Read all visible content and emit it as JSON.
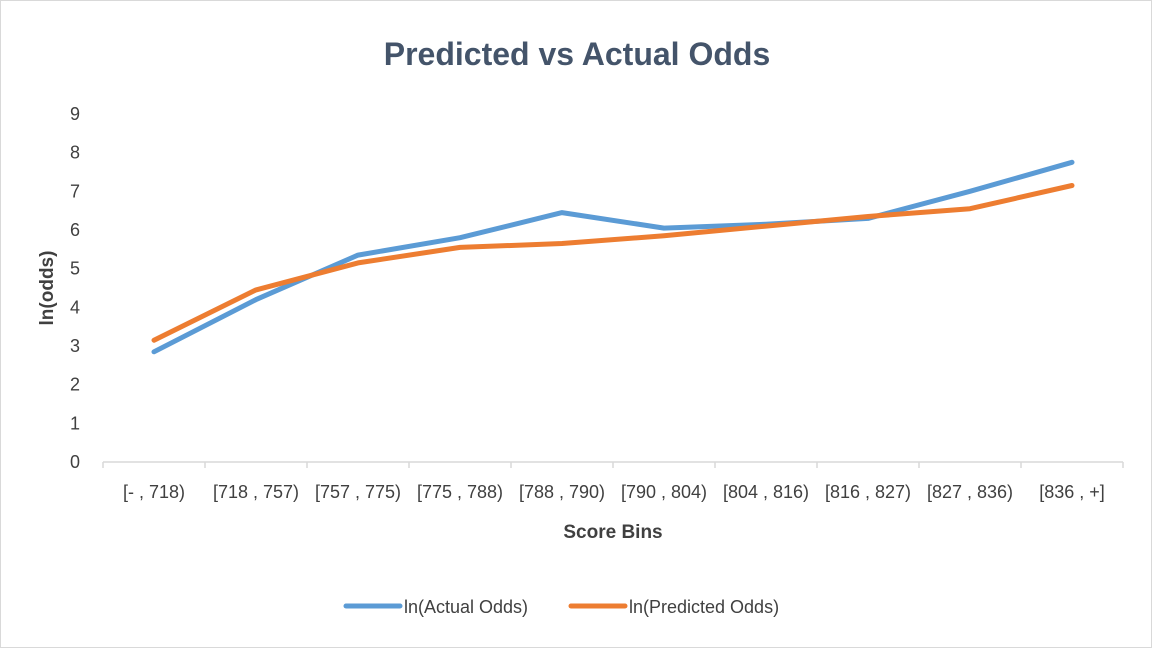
{
  "chart_data": {
    "type": "line",
    "title": "Predicted vs Actual Odds",
    "xlabel": "Score Bins",
    "ylabel": "ln(odds)",
    "ylim": [
      0,
      9
    ],
    "yticks": [
      "0",
      "1",
      "2",
      "3",
      "4",
      "5",
      "6",
      "7",
      "8",
      "9"
    ],
    "grid": false,
    "legend_position": "bottom",
    "categories": [
      "[- , 718)",
      "[718 , 757)",
      "[757 , 775)",
      "[775 , 788)",
      "[788 , 790)",
      "[790 , 804)",
      "[804 , 816)",
      "[816 , 827)",
      "[827 , 836)",
      "[836 , +]"
    ],
    "series": [
      {
        "name": "ln(Actual Odds)",
        "color": "#5b9bd5",
        "values": [
          2.85,
          4.2,
          5.35,
          5.8,
          6.45,
          6.05,
          6.15,
          6.3,
          7.0,
          7.75
        ]
      },
      {
        "name": "ln(Predicted Odds)",
        "color": "#ed7d31",
        "values": [
          3.15,
          4.45,
          5.15,
          5.55,
          5.65,
          5.85,
          6.1,
          6.35,
          6.55,
          7.15
        ]
      }
    ]
  }
}
